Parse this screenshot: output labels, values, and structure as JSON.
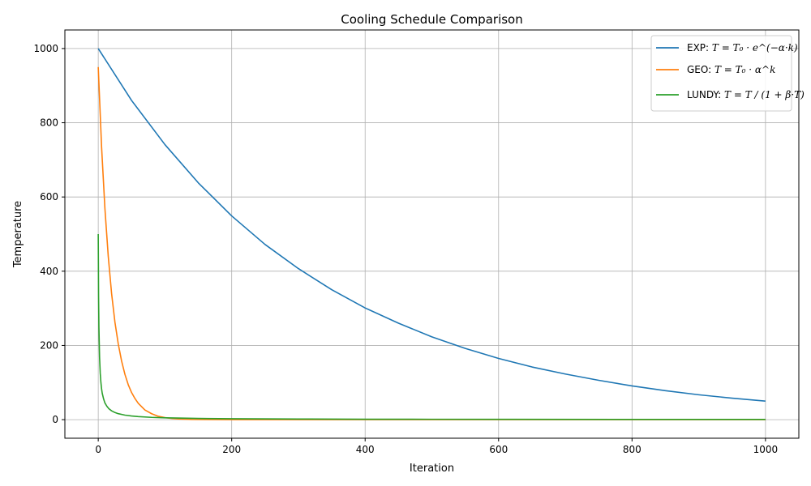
{
  "chart_data": {
    "type": "line",
    "title": "Cooling Schedule Comparison",
    "xlabel": "Iteration",
    "ylabel": "Temperature",
    "xlim": [
      -50,
      1050
    ],
    "ylim": [
      -50,
      1050
    ],
    "xticks": [
      0,
      200,
      400,
      600,
      800,
      1000
    ],
    "yticks": [
      0,
      200,
      400,
      600,
      800,
      1000
    ],
    "grid": true,
    "legend_position": "top-right",
    "series": [
      {
        "name": "EXP: T = T₀ · e^(−α·k)",
        "legend_prefix": "EXP: ",
        "color": "#1f77b4",
        "x": [
          0,
          50,
          100,
          150,
          200,
          250,
          300,
          350,
          400,
          450,
          500,
          550,
          600,
          650,
          700,
          750,
          800,
          850,
          900,
          950,
          1000
        ],
        "y": [
          1000,
          860,
          741,
          638,
          549,
          472,
          407,
          350,
          301,
          260,
          223,
          192,
          165,
          142,
          123,
          106,
          91,
          78,
          67,
          58,
          50
        ]
      },
      {
        "name": "GEO: T = T₀ · α^k",
        "legend_prefix": "GEO: ",
        "color": "#ff7f0e",
        "x": [
          0,
          5,
          10,
          15,
          20,
          25,
          30,
          35,
          40,
          45,
          50,
          55,
          60,
          70,
          80,
          90,
          100,
          110,
          120,
          140,
          160,
          200,
          300,
          400,
          600,
          800,
          1000
        ],
        "y": [
          950,
          735,
          569,
          440,
          340,
          263,
          204,
          158,
          122,
          94,
          73,
          57,
          44,
          26,
          16,
          9,
          5.6,
          3.4,
          2,
          0.7,
          0.3,
          0,
          0,
          0,
          0,
          0,
          0
        ]
      },
      {
        "name": "LUNDY: T = T / (1 + β·T)",
        "legend_prefix": "LUNDY: ",
        "color": "#2ca02c",
        "x": [
          0,
          0.5,
          1,
          2,
          3,
          4,
          5,
          6,
          8,
          10,
          13,
          16,
          20,
          25,
          30,
          40,
          50,
          60,
          80,
          100,
          150,
          200,
          300,
          400,
          500,
          600,
          800,
          1000
        ],
        "y": [
          500,
          333,
          250,
          167,
          125,
          100,
          83,
          71,
          56,
          45,
          36,
          29.4,
          23.8,
          19.2,
          16.1,
          12.2,
          9.8,
          8.2,
          6.2,
          5,
          3.3,
          2.5,
          1.7,
          1.2,
          1,
          0.8,
          0.6,
          0.5
        ]
      }
    ]
  }
}
